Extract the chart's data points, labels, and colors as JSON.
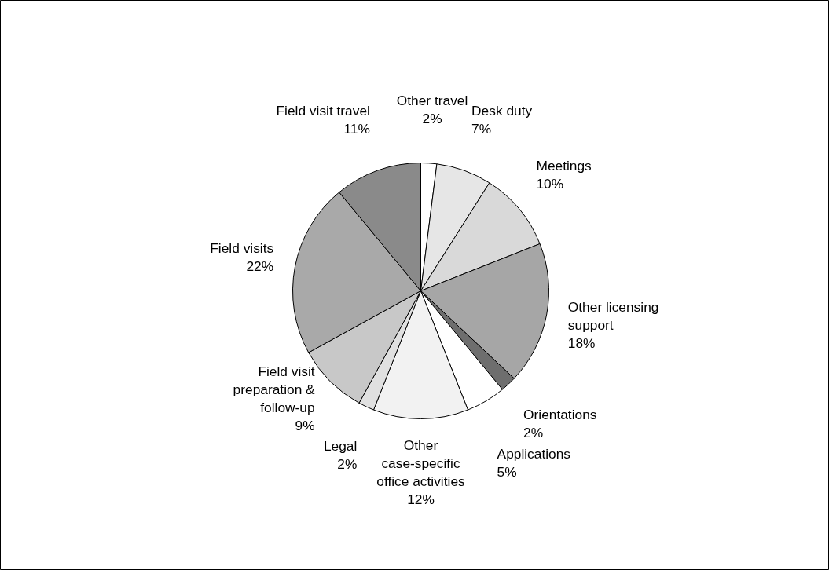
{
  "chart_data": {
    "type": "pie",
    "categories": [
      "Other travel",
      "Desk duty",
      "Meetings",
      "Other licensing support",
      "Orientations",
      "Applications",
      "Other case-specific office activities",
      "Legal",
      "Field visit preparation & follow-up",
      "Field visits",
      "Field visit travel"
    ],
    "values": [
      2,
      7,
      10,
      18,
      2,
      5,
      12,
      2,
      9,
      22,
      11
    ],
    "value_labels": [
      "2%",
      "7%",
      "10%",
      "18%",
      "2%",
      "5%",
      "12%",
      "2%",
      "9%",
      "22%",
      "11%"
    ],
    "colors": [
      "#ffffff",
      "#e6e6e6",
      "#d9d9d9",
      "#a6a6a6",
      "#6e6e6e",
      "#ffffff",
      "#f2f2f2",
      "#e0e0e0",
      "#c8c8c8",
      "#a9a9a9",
      "#8a8a8a"
    ]
  }
}
